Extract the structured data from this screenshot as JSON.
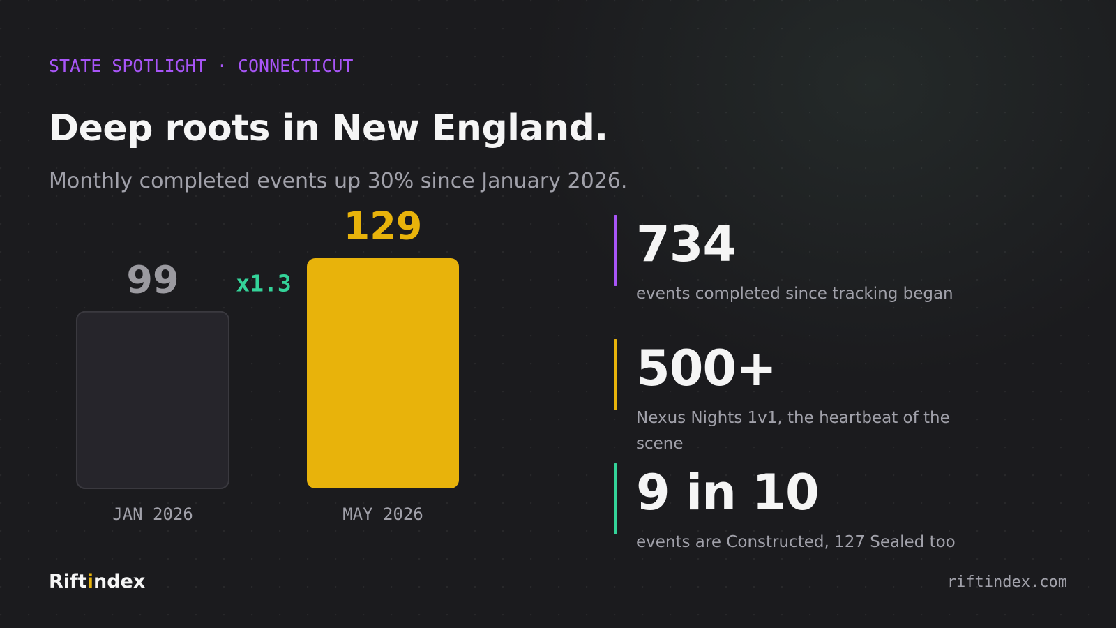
{
  "eyebrow": "STATE SPOTLIGHT · CONNECTICUT",
  "title": "Deep roots in New England.",
  "subtitle": "Monthly completed events up 30% since January 2026.",
  "chart_data": {
    "type": "bar",
    "categories": [
      "JAN 2026",
      "MAY 2026"
    ],
    "values": [
      99,
      129
    ],
    "colors": [
      "#26252b",
      "#e8b30b"
    ],
    "label_colors": [
      "#9b9aa0",
      "#e8b30b"
    ],
    "annotation": "x1.3",
    "annotation_color": "#34d399"
  },
  "stats": [
    {
      "value": "734",
      "label": "events completed since tracking began",
      "color": "#a855f7"
    },
    {
      "value": "500+",
      "label": "Nexus Nights 1v1, the heartbeat of the scene",
      "color": "#e8b30b"
    },
    {
      "value": "9 in 10",
      "label": "events are Constructed, 127 Sealed too",
      "color": "#34d399"
    }
  ],
  "brand": {
    "parts": [
      "Rift",
      "i",
      "ndex"
    ],
    "accent": "#e8b30b"
  },
  "url": "riftindex.com"
}
